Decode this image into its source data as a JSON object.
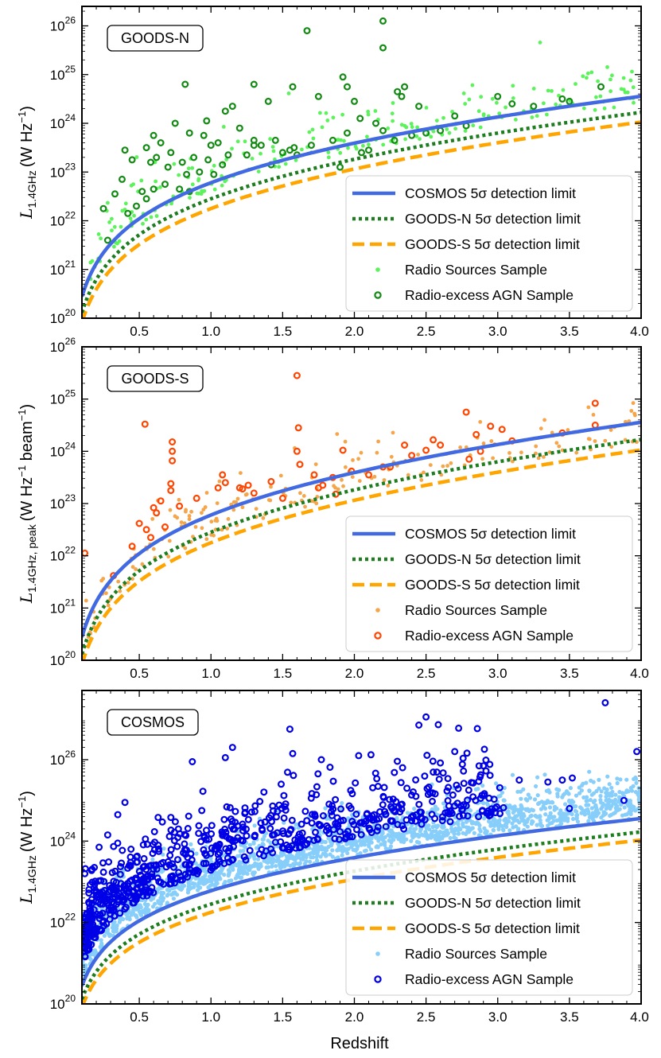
{
  "figure": {
    "xlabel": "Redshift"
  },
  "colors": {
    "cosmos_limit": "#4169e1",
    "goodsn_limit": "#1e7d1e",
    "goodss_limit": "#ffa500",
    "goodsn_radio": "#5cf25c",
    "goodsn_agn": "#138a13",
    "goodss_radio": "#f5a54a",
    "goodss_agn": "#ff4500",
    "cosmos_radio": "#87cefa",
    "cosmos_agn": "#0000e6"
  },
  "chart_data": [
    {
      "type": "scatter",
      "panel_label": "GOODS-N",
      "ylabel_main": "L",
      "ylabel_sub": "1.4GHz",
      "ylabel_units": "(W Hz",
      "ylabel_units_sup": "−1",
      "ylabel_close": ")",
      "yscale": "log",
      "xlim": [
        0.1,
        4.0
      ],
      "ylim_exp": [
        20,
        26.4
      ],
      "ytick_exps": [
        20,
        21,
        22,
        23,
        24,
        25,
        26
      ],
      "ytick_labels": [
        {
          "base": "10",
          "exp": "20"
        },
        {
          "base": "10",
          "exp": "21"
        },
        {
          "base": "10",
          "exp": "22"
        },
        {
          "base": "10",
          "exp": "23"
        },
        {
          "base": "10",
          "exp": "24"
        },
        {
          "base": "10",
          "exp": "25"
        },
        {
          "base": "10",
          "exp": "26"
        }
      ],
      "xticks": [
        0.5,
        1.0,
        1.5,
        2.0,
        2.5,
        3.0,
        3.5,
        4.0
      ],
      "xtick_labels": [
        "0.5",
        "1.0",
        "1.5",
        "2.0",
        "2.5",
        "3.0",
        "3.5",
        "4.0"
      ],
      "limit_at_z1_log": {
        "cosmos": 22.78,
        "goodsn": 22.45,
        "goodss": 22.25
      },
      "radio_color_key": "goodsn_radio",
      "agn_color_key": "goodsn_agn",
      "radio_count": 230,
      "agn_points": [
        [
          1.67,
          25.9
        ],
        [
          2.2,
          26.1
        ],
        [
          2.2,
          25.55
        ],
        [
          0.82,
          24.8
        ],
        [
          1.3,
          24.8
        ],
        [
          1.57,
          24.75
        ],
        [
          1.92,
          24.95
        ],
        [
          1.95,
          24.75
        ],
        [
          2.3,
          24.65
        ],
        [
          2.33,
          24.55
        ],
        [
          2.35,
          24.75
        ],
        [
          1.1,
          24.25
        ],
        [
          1.15,
          24.35
        ],
        [
          1.4,
          24.45
        ],
        [
          1.75,
          24.55
        ],
        [
          2.0,
          24.45
        ],
        [
          2.04,
          24.1
        ],
        [
          2.15,
          24.0
        ],
        [
          2.45,
          24.35
        ],
        [
          2.7,
          24.15
        ],
        [
          3.1,
          24.4
        ],
        [
          3.25,
          24.35
        ],
        [
          3.45,
          24.5
        ],
        [
          3.5,
          24.45
        ],
        [
          3.72,
          24.75
        ],
        [
          3.0,
          24.55
        ],
        [
          0.6,
          23.75
        ],
        [
          0.65,
          23.6
        ],
        [
          0.75,
          24.0
        ],
        [
          0.85,
          23.8
        ],
        [
          0.95,
          23.75
        ],
        [
          0.97,
          24.05
        ],
        [
          1.0,
          23.55
        ],
        [
          1.05,
          23.6
        ],
        [
          1.2,
          23.9
        ],
        [
          1.3,
          23.65
        ],
        [
          1.35,
          23.55
        ],
        [
          1.45,
          23.65
        ],
        [
          1.55,
          23.45
        ],
        [
          1.6,
          23.35
        ],
        [
          1.7,
          23.55
        ],
        [
          1.85,
          23.65
        ],
        [
          1.95,
          23.8
        ],
        [
          2.1,
          23.45
        ],
        [
          2.2,
          23.85
        ],
        [
          2.28,
          23.65
        ],
        [
          2.4,
          23.75
        ],
        [
          2.5,
          23.8
        ],
        [
          2.6,
          23.85
        ],
        [
          2.78,
          23.95
        ],
        [
          0.4,
          23.45
        ],
        [
          0.45,
          23.25
        ],
        [
          0.55,
          23.5
        ],
        [
          0.58,
          23.2
        ],
        [
          0.62,
          23.3
        ],
        [
          0.7,
          23.1
        ],
        [
          0.72,
          23.4
        ],
        [
          0.8,
          23.2
        ],
        [
          0.83,
          22.95
        ],
        [
          0.88,
          23.3
        ],
        [
          0.92,
          23.0
        ],
        [
          0.98,
          23.25
        ],
        [
          1.02,
          22.95
        ],
        [
          1.08,
          23.15
        ],
        [
          1.12,
          23.35
        ],
        [
          0.25,
          22.25
        ],
        [
          0.28,
          21.6
        ],
        [
          0.33,
          22.55
        ],
        [
          0.38,
          22.85
        ],
        [
          0.42,
          22.15
        ],
        [
          0.48,
          22.3
        ],
        [
          0.52,
          22.6
        ],
        [
          0.55,
          22.45
        ],
        [
          0.6,
          22.65
        ],
        [
          0.68,
          22.75
        ],
        [
          0.78,
          22.65
        ],
        [
          0.85,
          22.6
        ],
        [
          1.3,
          23.55
        ],
        [
          1.5,
          23.4
        ],
        [
          1.58,
          23.5
        ],
        [
          1.9,
          23.1
        ],
        [
          2.05,
          23.4
        ],
        [
          1.42,
          23.15
        ],
        [
          1.25,
          23.35
        ]
      ],
      "legend": [
        "COSMOS  5σ detection limit",
        "GOODS-N 5σ detection limit",
        "GOODS-S 5σ detection limit",
        "Radio Sources Sample",
        "Radio-excess AGN Sample"
      ]
    },
    {
      "type": "scatter",
      "panel_label": "GOODS-S",
      "ylabel_main": "L",
      "ylabel_sub": "1.4GHz, peak",
      "ylabel_units": "(W Hz",
      "ylabel_units_sup": "−1",
      "ylabel_units2": " beam",
      "ylabel_units2_sup": "−1",
      "ylabel_close": ")",
      "yscale": "log",
      "xlim": [
        0.1,
        4.0
      ],
      "ylim_exp": [
        20,
        26
      ],
      "ytick_exps": [
        20,
        21,
        22,
        23,
        24,
        25,
        26
      ],
      "ytick_labels": [
        {
          "base": "10",
          "exp": "20"
        },
        {
          "base": "10",
          "exp": "21"
        },
        {
          "base": "10",
          "exp": "22"
        },
        {
          "base": "10",
          "exp": "23"
        },
        {
          "base": "10",
          "exp": "24"
        },
        {
          "base": "10",
          "exp": "25"
        },
        {
          "base": "10",
          "exp": "26"
        }
      ],
      "xticks": [
        0.5,
        1.0,
        1.5,
        2.0,
        2.5,
        3.0,
        3.5,
        4.0
      ],
      "xtick_labels": [
        "0.5",
        "1.0",
        "1.5",
        "2.0",
        "2.5",
        "3.0",
        "3.5",
        "4.0"
      ],
      "limit_at_z1_log": {
        "cosmos": 22.78,
        "goodsn": 22.45,
        "goodss": 22.25
      },
      "radio_color_key": "goodss_radio",
      "agn_color_key": "goodss_agn",
      "radio_count": 200,
      "agn_points": [
        [
          1.6,
          25.45
        ],
        [
          0.54,
          24.52
        ],
        [
          0.73,
          24.18
        ],
        [
          0.73,
          24.0
        ],
        [
          0.73,
          23.82
        ],
        [
          0.72,
          23.38
        ],
        [
          0.72,
          23.25
        ],
        [
          0.6,
          22.92
        ],
        [
          0.62,
          22.82
        ],
        [
          0.65,
          23.05
        ],
        [
          0.55,
          22.5
        ],
        [
          0.5,
          22.62
        ],
        [
          0.45,
          22.18
        ],
        [
          0.32,
          21.62
        ],
        [
          0.12,
          22.05
        ],
        [
          0.58,
          22.35
        ],
        [
          0.68,
          22.55
        ],
        [
          0.78,
          22.95
        ],
        [
          0.9,
          23.1
        ],
        [
          1.05,
          23.3
        ],
        [
          1.08,
          23.55
        ],
        [
          1.1,
          23.4
        ],
        [
          1.2,
          23.3
        ],
        [
          1.22,
          23.28
        ],
        [
          1.26,
          23.35
        ],
        [
          1.42,
          23.42
        ],
        [
          1.6,
          24.0
        ],
        [
          1.61,
          24.45
        ],
        [
          1.62,
          23.75
        ],
        [
          1.72,
          23.55
        ],
        [
          1.75,
          23.3
        ],
        [
          1.78,
          23.35
        ],
        [
          1.85,
          23.5
        ],
        [
          1.87,
          23.18
        ],
        [
          1.92,
          24.02
        ],
        [
          1.98,
          23.62
        ],
        [
          2.1,
          23.55
        ],
        [
          2.2,
          23.7
        ],
        [
          2.35,
          24.12
        ],
        [
          2.4,
          23.92
        ],
        [
          2.5,
          24.02
        ],
        [
          2.55,
          24.22
        ],
        [
          2.6,
          24.12
        ],
        [
          2.78,
          24.75
        ],
        [
          2.8,
          23.85
        ],
        [
          2.85,
          24.32
        ],
        [
          2.88,
          24.0
        ],
        [
          2.95,
          24.48
        ],
        [
          3.03,
          24.42
        ],
        [
          3.1,
          24.2
        ],
        [
          3.45,
          24.35
        ],
        [
          3.68,
          24.5
        ],
        [
          3.68,
          24.92
        ],
        [
          1.3,
          23.2
        ],
        [
          1.5,
          23.1
        ],
        [
          2.25,
          23.7
        ]
      ],
      "legend": [
        "COSMOS  5σ detection limit",
        "GOODS-N 5σ detection limit",
        "GOODS-S 5σ detection limit",
        "Radio Sources Sample",
        "Radio-excess AGN Sample"
      ]
    },
    {
      "type": "scatter",
      "panel_label": "COSMOS",
      "ylabel_main": "L",
      "ylabel_sub": "1.4GHz",
      "ylabel_units": "(W Hz",
      "ylabel_units_sup": "−1",
      "ylabel_close": ")",
      "yscale": "log",
      "xlim": [
        0.1,
        4.0
      ],
      "ylim_exp": [
        20,
        27.7
      ],
      "ytick_exps": [
        20,
        22,
        24,
        26
      ],
      "ytick_labels": [
        {
          "base": "10",
          "exp": "20"
        },
        {
          "base": "10",
          "exp": "22"
        },
        {
          "base": "10",
          "exp": "24"
        },
        {
          "base": "10",
          "exp": "26"
        }
      ],
      "xticks": [
        0.5,
        1.0,
        1.5,
        2.0,
        2.5,
        3.0,
        3.5,
        4.0
      ],
      "xtick_labels": [
        "0.5",
        "1.0",
        "1.5",
        "2.0",
        "2.5",
        "3.0",
        "3.5",
        "4.0"
      ],
      "limit_at_z1_log": {
        "cosmos": 22.78,
        "goodsn": 22.45,
        "goodss": 22.25
      },
      "radio_color_key": "cosmos_radio",
      "agn_color_key": "cosmos_agn",
      "radio_count": 1800,
      "agn_count": 700,
      "agn_points": [
        [
          3.75,
          27.4
        ],
        [
          2.5,
          27.05
        ],
        [
          2.45,
          26.85
        ],
        [
          1.55,
          26.75
        ],
        [
          3.97,
          26.2
        ],
        [
          1.57,
          26.15
        ],
        [
          1.15,
          26.3
        ],
        [
          1.1,
          26.05
        ],
        [
          0.87,
          25.95
        ],
        [
          1.77,
          26.0
        ],
        [
          2.03,
          26.1
        ],
        [
          2.6,
          25.92
        ],
        [
          2.9,
          25.85
        ],
        [
          2.87,
          25.85
        ],
        [
          2.7,
          26.2
        ],
        [
          3.15,
          25.5
        ],
        [
          3.35,
          25.45
        ],
        [
          3.45,
          25.5
        ],
        [
          3.52,
          25.55
        ],
        [
          3.5,
          24.8
        ],
        [
          3.88,
          25.0
        ],
        [
          3.04,
          24.82
        ],
        [
          2.4,
          24.5
        ],
        [
          0.35,
          24.65
        ],
        [
          0.4,
          24.95
        ],
        [
          0.28,
          24.15
        ],
        [
          0.22,
          23.85
        ],
        [
          0.12,
          23.2
        ]
      ],
      "legend": [
        "COSMOS  5σ detection limit",
        "GOODS-N 5σ detection limit",
        "GOODS-S 5σ detection limit",
        "Radio Sources Sample",
        "Radio-excess AGN Sample"
      ]
    }
  ]
}
